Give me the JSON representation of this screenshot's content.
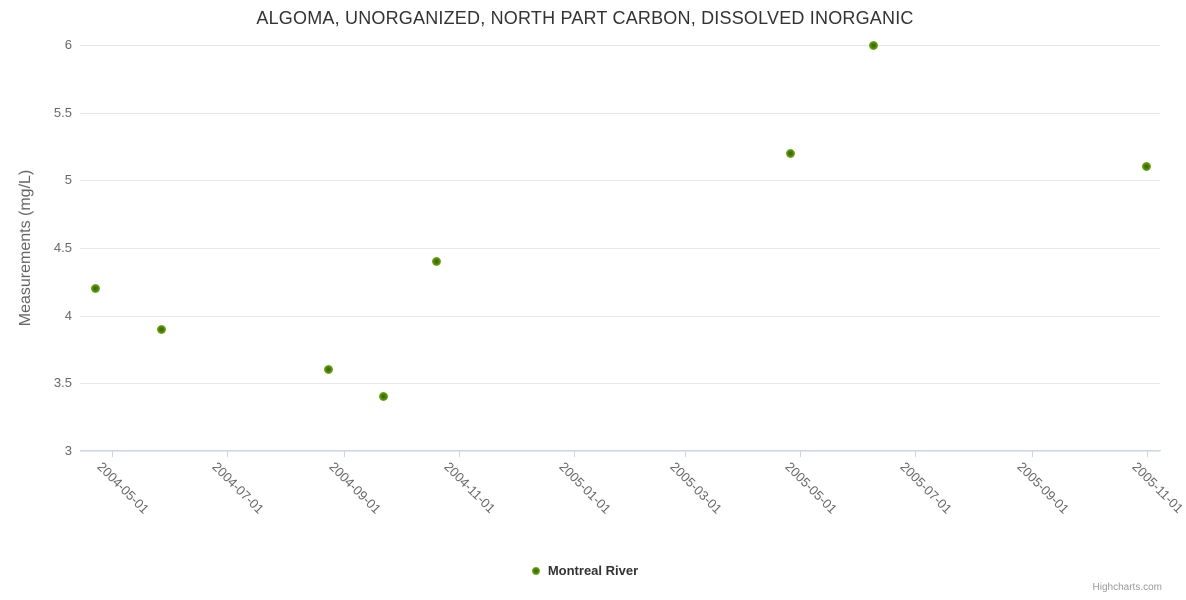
{
  "chart_data": {
    "type": "scatter",
    "title": "ALGOMA, UNORGANIZED, NORTH PART CARBON, DISSOLVED INORGANIC",
    "xlabel": "",
    "ylabel": "Measurements (mg/L)",
    "ylim": [
      3,
      6
    ],
    "yticks": [
      "3",
      "3.5",
      "4",
      "4.5",
      "5",
      "5.5",
      "6"
    ],
    "xlim": [
      "2004-04-14",
      "2005-11-08"
    ],
    "xticks": [
      "2004-05-01",
      "2004-07-01",
      "2004-09-01",
      "2004-11-01",
      "2005-01-01",
      "2005-03-01",
      "2005-05-01",
      "2005-07-01",
      "2005-09-01",
      "2005-11-01"
    ],
    "grid": true,
    "legend_position": "bottom-center",
    "series": [
      {
        "name": "Montreal River",
        "color": "#7ab824",
        "marker_center_color": "#335e00",
        "points": [
          {
            "date": "2004-04-22",
            "value": 4.2
          },
          {
            "date": "2004-05-27",
            "value": 3.9
          },
          {
            "date": "2004-08-24",
            "value": 3.6
          },
          {
            "date": "2004-09-22",
            "value": 3.4
          },
          {
            "date": "2004-10-20",
            "value": 4.4
          },
          {
            "date": "2005-04-26",
            "value": 5.2
          },
          {
            "date": "2005-06-09",
            "value": 6.0
          },
          {
            "date": "2005-11-01",
            "value": 5.1
          }
        ]
      }
    ],
    "credits": "Highcharts.com"
  },
  "colors": {
    "background": "#ffffff",
    "title_text": "#333333",
    "axis_label": "#666666",
    "gridline": "#e6e6e6",
    "axis_line": "#ccd6eb",
    "credits_text": "#999999"
  }
}
